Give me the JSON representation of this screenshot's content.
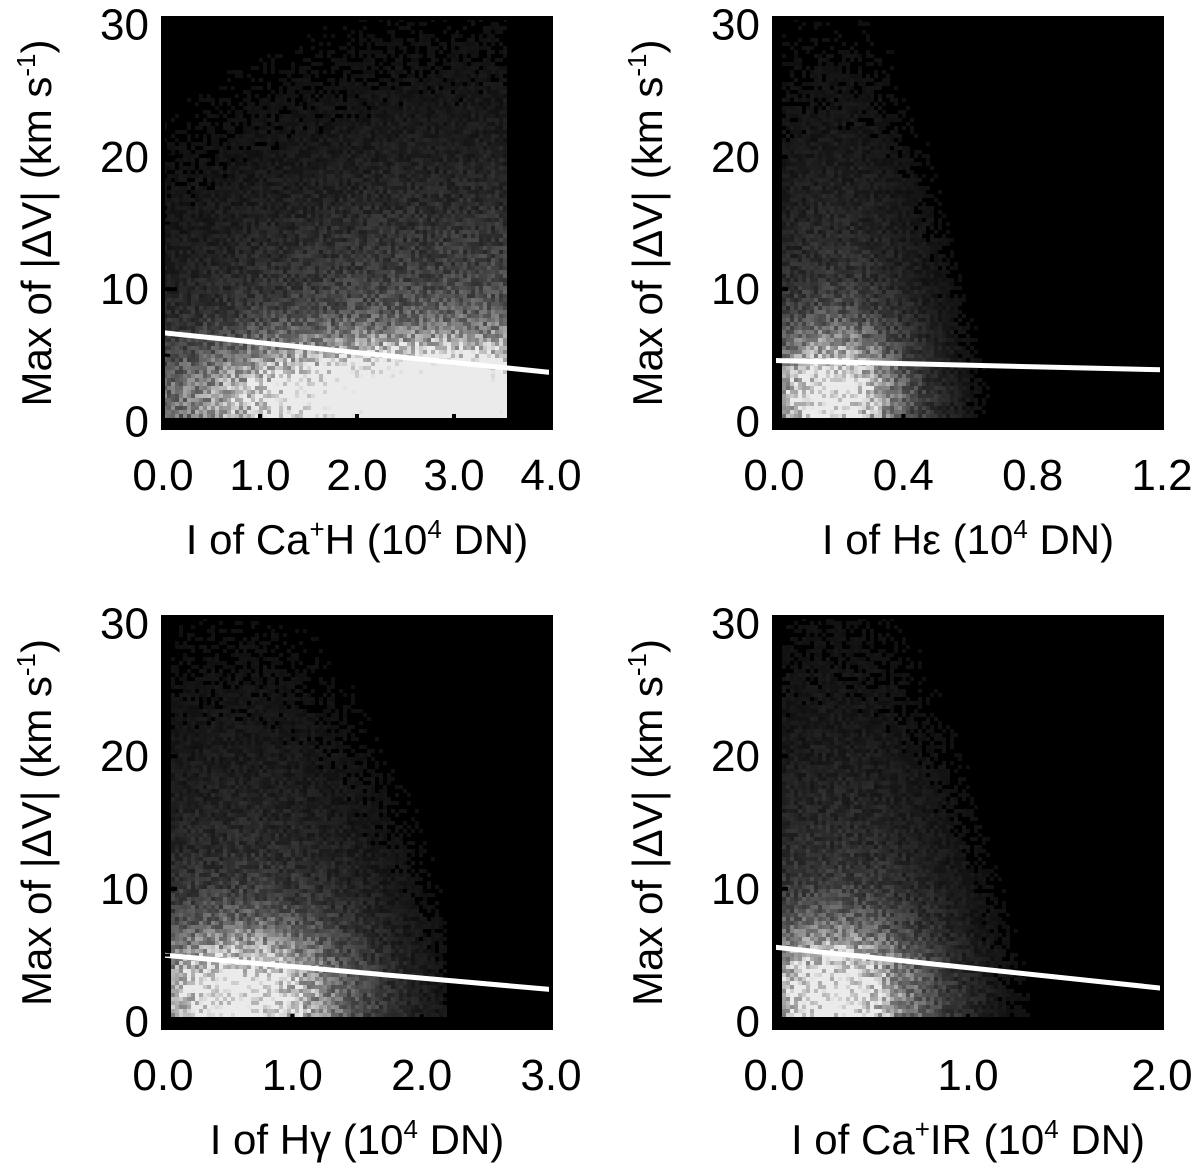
{
  "chart_data": [
    {
      "type": "heatmap",
      "panel": "top-left",
      "xlabel": {
        "prefix": "I of Ca",
        "sup": "+",
        "species": "H",
        "unit_prefix": " (10",
        "unit_sup": "4",
        "unit_suffix": " DN)"
      },
      "ylabel": {
        "main": "Max of |ΔV| (km s",
        "sup": "-1",
        "close": ")"
      },
      "xlim": [
        0,
        4.0
      ],
      "ylim": [
        -0.5,
        30.5
      ],
      "xticks": [
        0,
        1,
        2,
        3,
        4
      ],
      "xtick_labels": [
        "0.0",
        "1.0",
        "2.0",
        "3.0",
        "4.0"
      ],
      "xminor": [
        0.5,
        1.5,
        2.5,
        3.5
      ],
      "yticks": [
        0,
        10,
        20,
        30
      ],
      "ytick_labels": [
        "0",
        "10",
        "20",
        "30"
      ],
      "yminor": [
        5,
        15,
        25
      ],
      "density": {
        "x_min": 0.0,
        "x_max": 3.55,
        "sharp_cut_x": 3.55,
        "peak_x": 2.5,
        "peak_y": 2.0,
        "spread_x": 1.4,
        "spread_y": 2.5,
        "tail_y": 12,
        "weight_rise": 0.6
      },
      "fit_line": {
        "x": [
          0,
          4.0
        ],
        "y": [
          6.7,
          3.7
        ]
      }
    },
    {
      "type": "heatmap",
      "panel": "top-right",
      "xlabel": {
        "prefix": "I of Hε",
        "sup": "",
        "species": "",
        "unit_prefix": " (10",
        "unit_sup": "4",
        "unit_suffix": " DN)"
      },
      "ylabel": {
        "main": "Max of |ΔV| (km s",
        "sup": "-1",
        "close": ")"
      },
      "xlim": [
        0,
        1.2
      ],
      "ylim": [
        -0.5,
        30.5
      ],
      "xticks": [
        0,
        0.4,
        0.8,
        1.2
      ],
      "xtick_labels": [
        "0.0",
        "0.4",
        "0.8",
        "1.2"
      ],
      "xminor": [
        0.2,
        0.6,
        1.0
      ],
      "yticks": [
        0,
        10,
        20,
        30
      ],
      "ytick_labels": [
        "0",
        "10",
        "20",
        "30"
      ],
      "yminor": [
        5,
        15,
        25
      ],
      "density": {
        "x_min": 0.03,
        "x_max": 1.15,
        "sharp_cut_x": null,
        "peak_x": 0.18,
        "peak_y": 2.0,
        "spread_x": 0.12,
        "spread_y": 3.0,
        "tail_y": 14,
        "weight_rise": 0
      },
      "fit_line": {
        "x": [
          0,
          1.2
        ],
        "y": [
          4.6,
          3.9
        ]
      }
    },
    {
      "type": "heatmap",
      "panel": "bottom-left",
      "xlabel": {
        "prefix": "I of Hγ",
        "sup": "",
        "species": "",
        "unit_prefix": " (10",
        "unit_sup": "4",
        "unit_suffix": " DN)"
      },
      "ylabel": {
        "main": "Max of |ΔV| (km s",
        "sup": "-1",
        "close": ")"
      },
      "xlim": [
        0,
        3.0
      ],
      "ylim": [
        -0.5,
        30.5
      ],
      "xticks": [
        0,
        1,
        2,
        3
      ],
      "xtick_labels": [
        "0.0",
        "1.0",
        "2.0",
        "3.0"
      ],
      "xminor": [
        0.5,
        1.5,
        2.5
      ],
      "yticks": [
        0,
        10,
        20,
        30
      ],
      "ytick_labels": [
        "0",
        "10",
        "20",
        "30"
      ],
      "yminor": [
        5,
        15,
        25
      ],
      "density": {
        "x_min": 0.05,
        "x_max": 2.2,
        "sharp_cut_x": null,
        "peak_x": 0.6,
        "peak_y": 2.0,
        "spread_x": 0.45,
        "spread_y": 3.2,
        "tail_y": 14,
        "weight_rise": 0
      },
      "fit_line": {
        "x": [
          0,
          3.0
        ],
        "y": [
          5.0,
          2.4
        ]
      }
    },
    {
      "type": "heatmap",
      "panel": "bottom-right",
      "xlabel": {
        "prefix": "I of Ca",
        "sup": "+",
        "species": "IR",
        "unit_prefix": " (10",
        "unit_sup": "4",
        "unit_suffix": " DN)"
      },
      "ylabel": {
        "main": "Max of |ΔV| (km s",
        "sup": "-1",
        "close": ")"
      },
      "xlim": [
        0,
        2.0
      ],
      "ylim": [
        -0.5,
        30.5
      ],
      "xticks": [
        0,
        1,
        2
      ],
      "xtick_labels": [
        "0.0",
        "1.0",
        "2.0"
      ],
      "xminor": [
        0.25,
        0.5,
        0.75,
        1.25,
        1.5,
        1.75
      ],
      "yticks": [
        0,
        10,
        20,
        30
      ],
      "ytick_labels": [
        "0",
        "10",
        "20",
        "30"
      ],
      "yminor": [
        5,
        15,
        25
      ],
      "density": {
        "x_min": 0.05,
        "x_max": 1.6,
        "sharp_cut_x": null,
        "peak_x": 0.3,
        "peak_y": 2.0,
        "spread_x": 0.25,
        "spread_y": 3.2,
        "tail_y": 15,
        "weight_rise": 0
      },
      "fit_line": {
        "x": [
          0,
          2.0
        ],
        "y": [
          5.6,
          2.5
        ]
      }
    }
  ],
  "colors": {
    "background": "#000000",
    "fit_line": "#ffffff",
    "axes": "#000000"
  }
}
